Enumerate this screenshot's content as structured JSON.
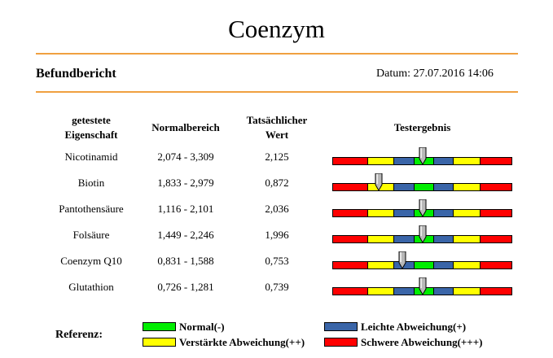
{
  "title": "Coenzym",
  "report_label": "Befundbericht",
  "date_text": "Datum: 27.07.2016 14:06",
  "table": {
    "headers": {
      "property_line1": "getestete",
      "property_line2": "Eigenschaft",
      "normal_range": "Normalbereich",
      "actual_line1": "Tatsächlicher",
      "actual_line2": "Wert",
      "result": "Testergebnis"
    },
    "rows": [
      {
        "name": "Nicotinamid",
        "range": "2,074 - 3,309",
        "value": "2,125",
        "marker": 0.5
      },
      {
        "name": "Biotin",
        "range": "1,833 - 2,979",
        "value": "0,872",
        "marker": 0.26
      },
      {
        "name": "Pantothensäure",
        "range": "1,116 - 2,101",
        "value": "2,036",
        "marker": 0.5
      },
      {
        "name": "Folsäure",
        "range": "1,449 - 2,246",
        "value": "1,996",
        "marker": 0.5
      },
      {
        "name": "Coenzym Q10",
        "range": "0,831 - 1,588",
        "value": "0,753",
        "marker": 0.39
      },
      {
        "name": "Glutathion",
        "range": "0,726 - 1,281",
        "value": "0,739",
        "marker": 0.5
      }
    ]
  },
  "bar_segments": [
    {
      "color": "#ff0000",
      "fraction": 0.19
    },
    {
      "color": "#ffff00",
      "fraction": 0.15
    },
    {
      "color": "#3a65a8",
      "fraction": 0.11
    },
    {
      "color": "#00ee00",
      "fraction": 0.11
    },
    {
      "color": "#3a65a8",
      "fraction": 0.11
    },
    {
      "color": "#ffff00",
      "fraction": 0.15
    },
    {
      "color": "#ff0000",
      "fraction": 0.18
    }
  ],
  "legend": {
    "label": "Referenz:",
    "items": [
      {
        "text": "Normal(-)",
        "color": "#00ee00"
      },
      {
        "text": "Leichte Abweichung(+)",
        "color": "#3a65a8"
      },
      {
        "text": "Verstärkte Abweichung(++)",
        "color": "#ffff00"
      },
      {
        "text": "Schwere Abweichung(+++)",
        "color": "#ff0000"
      }
    ]
  }
}
